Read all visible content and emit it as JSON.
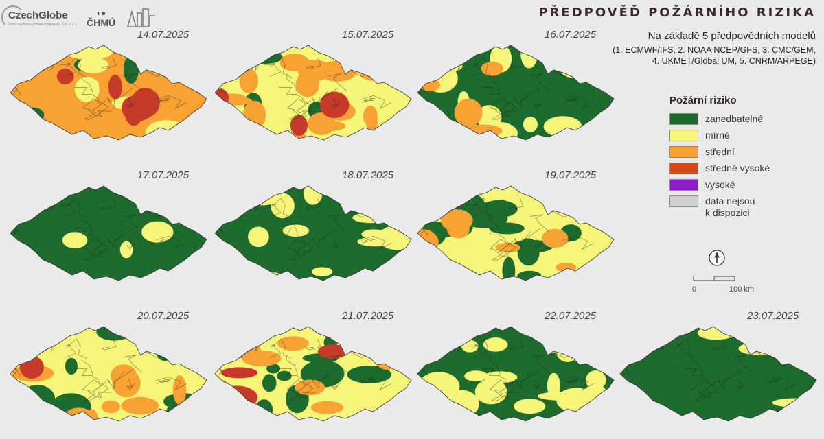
{
  "header": {
    "logos": {
      "czechglobe": "CzechGlobe",
      "czechglobe_sub": "Ústav výzkumu globální změny AV ČR, v. v. i.",
      "chmu": "ČHMÚ"
    },
    "title": "PŘEDPOVĚĎ POŽÁRNÍHO RIZIKA",
    "subtitle_line1": "Na základě 5 předpovědních modelů",
    "subtitle_line2": "(1. ECMWF/IFS, 2. NOAA NCEP/GFS, 3. CMC/GEM,",
    "subtitle_line3": "4. UKMET/Global UM, 5. CNRM/ARPEGE)"
  },
  "colors": {
    "zanedbatelne": "#1e6b2e",
    "mirne": "#f5f57a",
    "stredni": "#f7a233",
    "stredne_vysoke": "#d8461a",
    "vysoke": "#8b1ec8",
    "nodata": "#cfcfcf",
    "high_patch": "#c63a2a"
  },
  "maps": [
    {
      "date": "14.07.2025",
      "mix": {
        "green": 0.15,
        "yellow": 0.2,
        "orange": 0.45,
        "red": 0.2
      }
    },
    {
      "date": "15.07.2025",
      "mix": {
        "green": 0.1,
        "yellow": 0.4,
        "orange": 0.4,
        "red": 0.1
      }
    },
    {
      "date": "16.07.2025",
      "mix": {
        "green": 0.6,
        "yellow": 0.3,
        "orange": 0.1,
        "red": 0.0
      }
    },
    {
      "date": "17.07.2025",
      "mix": {
        "green": 0.9,
        "yellow": 0.1,
        "orange": 0.0,
        "red": 0.0
      }
    },
    {
      "date": "18.07.2025",
      "mix": {
        "green": 0.6,
        "yellow": 0.4,
        "orange": 0.0,
        "red": 0.0
      }
    },
    {
      "date": "19.07.2025",
      "mix": {
        "green": 0.35,
        "yellow": 0.5,
        "orange": 0.15,
        "red": 0.0
      }
    },
    {
      "date": "20.07.2025",
      "mix": {
        "green": 0.2,
        "yellow": 0.5,
        "orange": 0.28,
        "red": 0.02
      }
    },
    {
      "date": "21.07.2025",
      "mix": {
        "green": 0.35,
        "yellow": 0.35,
        "orange": 0.2,
        "red": 0.1
      }
    },
    {
      "date": "22.07.2025",
      "mix": {
        "green": 0.55,
        "yellow": 0.45,
        "orange": 0.0,
        "red": 0.0
      }
    },
    {
      "date": "23.07.2025",
      "mix": {
        "green": 0.9,
        "yellow": 0.1,
        "orange": 0.0,
        "red": 0.0
      }
    }
  ],
  "legend": {
    "title": "Požární riziko",
    "items": [
      {
        "label": "zanedbatelné",
        "color": "#1e6b2e"
      },
      {
        "label": "mírné",
        "color": "#f5f57a"
      },
      {
        "label": "střední",
        "color": "#f7a233"
      },
      {
        "label": "středně vysoké",
        "color": "#d8461a"
      },
      {
        "label": "vysoké",
        "color": "#8b1ec8"
      },
      {
        "label": "data nejsou\nk dispozici",
        "color": "#cfcfcf"
      }
    ]
  },
  "scale": {
    "zero": "0",
    "end": "100 km"
  }
}
